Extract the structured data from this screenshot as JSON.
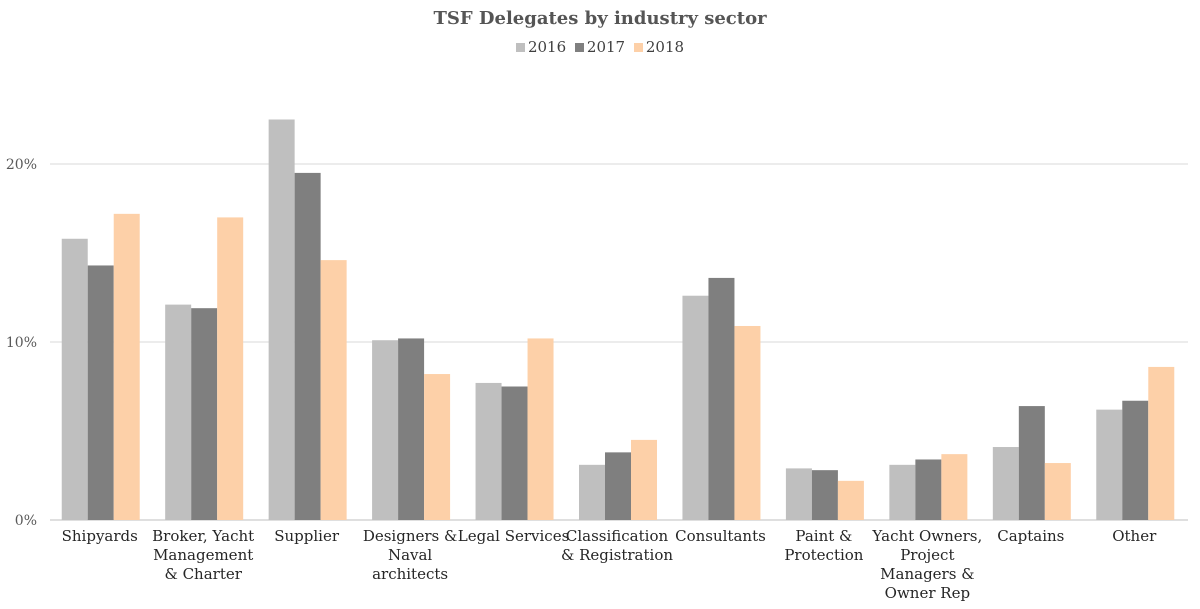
{
  "chart_data": {
    "type": "bar",
    "title": "TSF Delegates by industry sector",
    "categories": [
      [
        "Shipyards"
      ],
      [
        "Broker, Yacht",
        "Management",
        "& Charter"
      ],
      [
        "Supplier"
      ],
      [
        "Designers &",
        "Naval",
        "architects"
      ],
      [
        "Legal Services"
      ],
      [
        "Classification",
        "& Registration"
      ],
      [
        "Consultants"
      ],
      [
        "Paint &",
        "Protection"
      ],
      [
        "Yacht Owners,",
        "Project",
        "Managers &",
        "Owner Rep"
      ],
      [
        "Captains"
      ],
      [
        "Other"
      ]
    ],
    "series": [
      {
        "name": "2016",
        "color": "#bfbfbf",
        "values": [
          15.8,
          12.1,
          22.5,
          10.1,
          7.7,
          3.1,
          12.6,
          2.9,
          3.1,
          4.1,
          6.2
        ]
      },
      {
        "name": "2017",
        "color": "#7f7f7f",
        "values": [
          14.3,
          11.9,
          19.5,
          10.2,
          7.5,
          3.8,
          13.6,
          2.8,
          3.4,
          6.4,
          6.7
        ]
      },
      {
        "name": "2018",
        "color": "#fdd0a8",
        "values": [
          17.2,
          17.0,
          14.6,
          8.2,
          10.2,
          4.5,
          10.9,
          2.2,
          3.7,
          3.2,
          8.6
        ]
      }
    ],
    "y_ticks": [
      "0%",
      "10%",
      "20%"
    ],
    "ylim": [
      0,
      25
    ],
    "grid": true,
    "legend": "top-center"
  }
}
